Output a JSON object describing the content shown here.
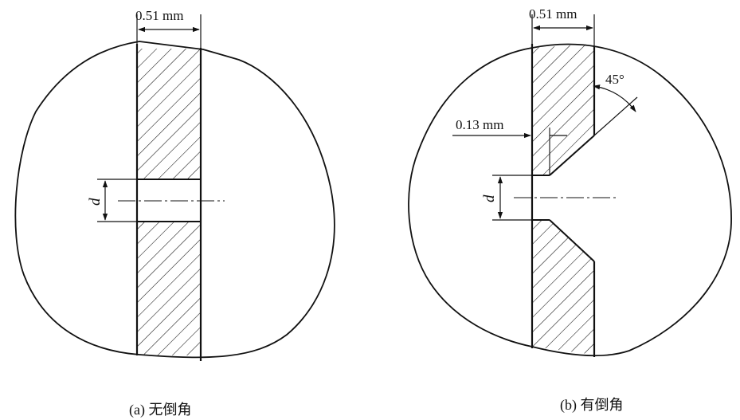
{
  "figure_a": {
    "caption": "(a) 无倒角",
    "width_label": "0.51 mm",
    "diameter_label": "d"
  },
  "figure_b": {
    "caption": "(b) 有倒角",
    "width_label": "0.51 mm",
    "chamfer_depth_label": "0.13 mm",
    "angle_label": "45°",
    "diameter_label": "d"
  }
}
